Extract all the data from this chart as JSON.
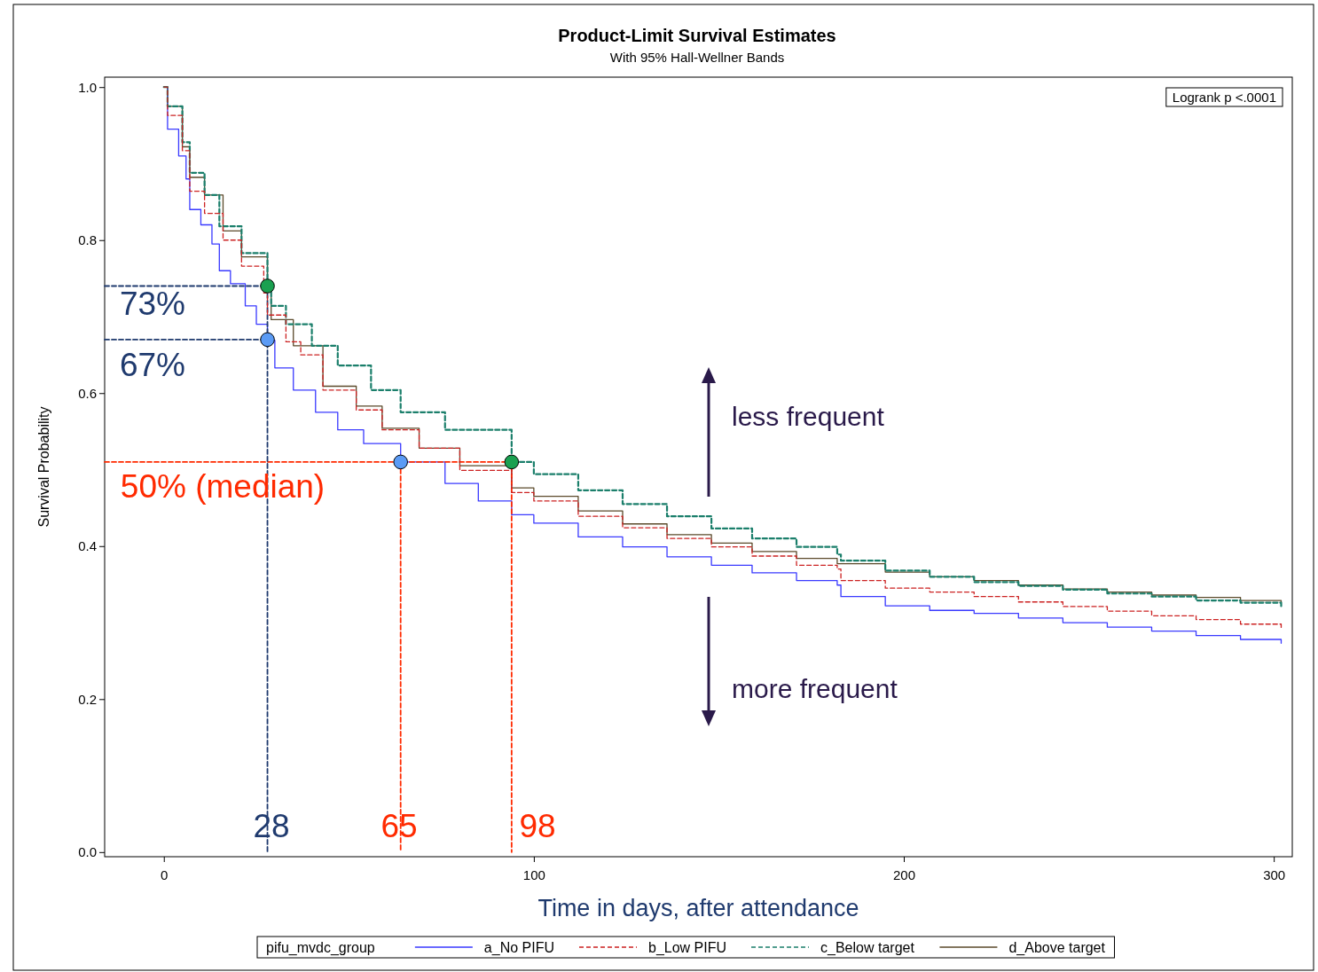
{
  "chart_data": {
    "type": "step",
    "title": "Product-Limit Survival Estimates",
    "subtitle": "With 95% Hall-Wellner Bands",
    "xlabel": "Time in days, after attendance",
    "ylabel": "Survival Probability",
    "legend_title": "pifu_mvdc_group",
    "legend": "bottom",
    "grid": false,
    "xlim": [
      -16,
      305
    ],
    "xticks": [
      0,
      100,
      200,
      300
    ],
    "ylim": [
      -0.006,
      1.013
    ],
    "yticks": [
      {
        "value": 0,
        "label": "0.0"
      },
      {
        "value": 0.2,
        "label": "0.2"
      },
      {
        "value": 0.4,
        "label": "0.4"
      },
      {
        "value": 0.6,
        "label": "0.6"
      },
      {
        "value": 0.8,
        "label": "0.8"
      },
      {
        "value": 1,
        "label": "1.0"
      }
    ],
    "series": [
      {
        "name": "a_No PIFU",
        "color": "#3a3aff",
        "line_style": "solid",
        "x": [
          0,
          1,
          4,
          6,
          7,
          10,
          13,
          15,
          18,
          22,
          25,
          28,
          30,
          35,
          41,
          47,
          54,
          64,
          76,
          85,
          94,
          100,
          112,
          124,
          136,
          148,
          159,
          171,
          182,
          183,
          195,
          207,
          219,
          231,
          243,
          255,
          267,
          279,
          291,
          302
        ],
        "values": [
          1,
          0.945,
          0.91,
          0.88,
          0.84,
          0.82,
          0.795,
          0.76,
          0.743,
          0.714,
          0.69,
          0.669,
          0.633,
          0.604,
          0.575,
          0.552,
          0.534,
          0.51,
          0.482,
          0.459,
          0.441,
          0.43,
          0.412,
          0.399,
          0.386,
          0.375,
          0.365,
          0.355,
          0.349,
          0.334,
          0.322,
          0.316,
          0.312,
          0.306,
          0.3,
          0.294,
          0.289,
          0.283,
          0.278,
          0.273
        ]
      },
      {
        "name": "b_Low PIFU",
        "color": "#cc2222",
        "line_style": "dashed",
        "x": [
          0,
          1,
          5,
          7,
          11,
          16,
          21,
          27,
          28,
          33,
          37,
          43,
          52,
          59,
          69,
          80,
          94,
          100,
          112,
          124,
          136,
          148,
          159,
          171,
          182,
          183,
          195,
          207,
          219,
          231,
          243,
          255,
          267,
          279,
          291,
          302
        ],
        "values": [
          1,
          0.963,
          0.917,
          0.864,
          0.835,
          0.8,
          0.766,
          0.731,
          0.702,
          0.667,
          0.65,
          0.604,
          0.578,
          0.552,
          0.528,
          0.499,
          0.47,
          0.459,
          0.439,
          0.424,
          0.41,
          0.399,
          0.387,
          0.375,
          0.37,
          0.355,
          0.345,
          0.34,
          0.334,
          0.327,
          0.321,
          0.315,
          0.309,
          0.304,
          0.298,
          0.291
        ]
      },
      {
        "name": "c_Below target",
        "color": "#1b7f6b",
        "line_style": "dashed",
        "x": [
          0,
          1,
          5,
          7,
          11,
          15,
          21,
          28,
          29,
          33,
          40,
          47,
          56,
          64,
          76,
          94,
          100,
          112,
          124,
          136,
          148,
          159,
          171,
          182,
          183,
          195,
          207,
          219,
          231,
          243,
          255,
          267,
          279,
          291,
          302
        ],
        "values": [
          1,
          0.975,
          0.928,
          0.888,
          0.859,
          0.818,
          0.783,
          0.74,
          0.714,
          0.69,
          0.662,
          0.636,
          0.604,
          0.575,
          0.552,
          0.51,
          0.494,
          0.473,
          0.455,
          0.439,
          0.423,
          0.41,
          0.399,
          0.389,
          0.381,
          0.368,
          0.36,
          0.353,
          0.348,
          0.343,
          0.338,
          0.334,
          0.329,
          0.326,
          0.321
        ]
      },
      {
        "name": "d_Above target",
        "color": "#5b4a2b",
        "line_style": "solid",
        "x": [
          0,
          1,
          5,
          7,
          11,
          16,
          21,
          28,
          29,
          35,
          43,
          52,
          59,
          69,
          80,
          94,
          100,
          112,
          124,
          136,
          148,
          159,
          171,
          182,
          195,
          207,
          219,
          231,
          243,
          255,
          267,
          279,
          291,
          302
        ],
        "values": [
          1,
          0.975,
          0.922,
          0.882,
          0.859,
          0.812,
          0.778,
          0.737,
          0.696,
          0.662,
          0.609,
          0.583,
          0.554,
          0.528,
          0.505,
          0.476,
          0.465,
          0.446,
          0.429,
          0.415,
          0.404,
          0.393,
          0.384,
          0.377,
          0.366,
          0.36,
          0.355,
          0.349,
          0.344,
          0.34,
          0.336,
          0.333,
          0.329,
          0.326
        ]
      },
      {
        "type": "line",
        "color": "#1f3a6e",
        "line_style": "dashed",
        "x": [
          -16,
          28,
          28
        ],
        "values": [
          0.74,
          0.74,
          0
        ]
      },
      {
        "type": "line",
        "color": "#1f3a6e",
        "line_style": "dashed",
        "x": [
          -16,
          28
        ],
        "values": [
          0.67,
          0.67
        ]
      },
      {
        "type": "line",
        "color": "#ff2a00",
        "line_style": "dashed",
        "x": [
          -16,
          94,
          94
        ],
        "values": [
          0.51,
          0.51,
          0
        ]
      },
      {
        "type": "line",
        "color": "#ff2a00",
        "line_style": "dashed",
        "x": [
          64,
          64
        ],
        "values": [
          0.51,
          0
        ]
      },
      {
        "type": "scatter",
        "marker": "circle",
        "x": [
          28,
          64,
          28,
          94
        ],
        "values": [
          0.67,
          0.51,
          0.74,
          0.51
        ],
        "colors": [
          "#5b9bf5",
          "#5b9bf5",
          "#1aa050",
          "#1aa050"
        ]
      }
    ],
    "annotations": [
      "Logrank p <.0001",
      "less frequent",
      "more frequent",
      "73%",
      "67%",
      "50% (median)",
      "28",
      "65",
      "98"
    ]
  }
}
